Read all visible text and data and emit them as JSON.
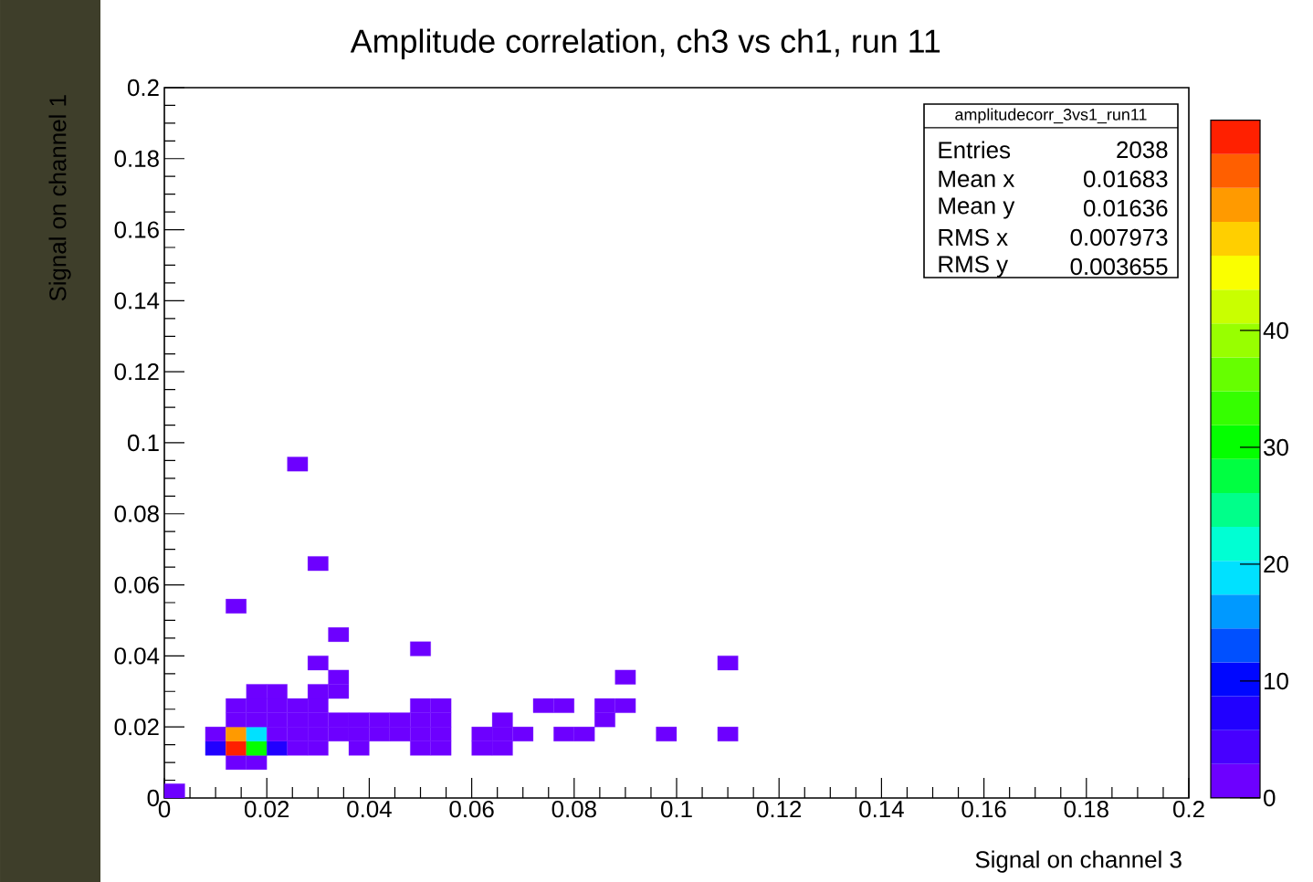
{
  "chart_data": {
    "type": "scatter",
    "title": "Amplitude correlation, ch3 vs ch1, run 11",
    "xlabel": "Signal on channel 3",
    "ylabel": "Signal on channel 1",
    "marker": "square",
    "xlim": [
      0,
      0.2
    ],
    "ylim": [
      0,
      0.2
    ],
    "xticks": [
      0,
      0.02,
      0.04,
      0.06,
      0.08,
      0.1,
      0.12,
      0.14,
      0.16,
      0.18,
      0.2
    ],
    "yticks": [
      0,
      0.02,
      0.04,
      0.06,
      0.08,
      0.1,
      0.12,
      0.14,
      0.16,
      0.18,
      0.2
    ],
    "clim": [
      0,
      58
    ],
    "cticks": [
      0,
      10,
      20,
      30,
      40
    ],
    "annotations": [
      "amplitudecorr_3vs1_run11",
      "Entries",
      "2038",
      "Mean x",
      "0.01683",
      "Mean y",
      "0.01636",
      "RMS x",
      "0.007973",
      "RMS y",
      "0.003655"
    ],
    "x": [
      0.002,
      0.014,
      0.018,
      0.01,
      0.014,
      0.018,
      0.022,
      0.026,
      0.03,
      0.038,
      0.05,
      0.054,
      0.062,
      0.066,
      0.01,
      0.014,
      0.018,
      0.022,
      0.026,
      0.03,
      0.034,
      0.038,
      0.042,
      0.046,
      0.05,
      0.054,
      0.062,
      0.066,
      0.07,
      0.078,
      0.082,
      0.098,
      0.11,
      0.014,
      0.018,
      0.022,
      0.026,
      0.03,
      0.034,
      0.038,
      0.042,
      0.046,
      0.05,
      0.054,
      0.066,
      0.086,
      0.014,
      0.018,
      0.022,
      0.026,
      0.03,
      0.05,
      0.054,
      0.074,
      0.078,
      0.086,
      0.09,
      0.018,
      0.022,
      0.03,
      0.034,
      0.034,
      0.09,
      0.03,
      0.11,
      0.05,
      0.034,
      0.014,
      0.03,
      0.026
    ],
    "values": [
      0.002,
      0.01,
      0.01,
      0.014,
      0.014,
      0.014,
      0.014,
      0.014,
      0.014,
      0.014,
      0.014,
      0.014,
      0.014,
      0.014,
      0.018,
      0.018,
      0.018,
      0.018,
      0.018,
      0.018,
      0.018,
      0.018,
      0.018,
      0.018,
      0.018,
      0.018,
      0.018,
      0.018,
      0.018,
      0.018,
      0.018,
      0.018,
      0.018,
      0.022,
      0.022,
      0.022,
      0.022,
      0.022,
      0.022,
      0.022,
      0.022,
      0.022,
      0.022,
      0.022,
      0.022,
      0.022,
      0.026,
      0.026,
      0.026,
      0.026,
      0.026,
      0.026,
      0.026,
      0.026,
      0.026,
      0.026,
      0.026,
      0.03,
      0.03,
      0.03,
      0.03,
      0.034,
      0.034,
      0.038,
      0.038,
      0.042,
      0.046,
      0.054,
      0.066,
      0.094
    ],
    "cvalues": [
      1,
      1,
      1,
      8,
      56,
      30,
      8,
      1,
      1,
      1,
      1,
      1,
      1,
      1,
      1,
      50,
      20,
      1,
      1,
      1,
      1,
      1,
      1,
      1,
      1,
      1,
      1,
      1,
      1,
      1,
      1,
      1,
      1,
      1,
      1,
      1,
      1,
      1,
      1,
      1,
      1,
      1,
      1,
      1,
      1,
      1,
      1,
      1,
      1,
      1,
      1,
      1,
      1,
      1,
      1,
      1,
      1,
      1,
      1,
      1,
      1,
      1,
      1,
      1,
      1,
      1,
      1,
      1,
      1,
      1
    ]
  }
}
